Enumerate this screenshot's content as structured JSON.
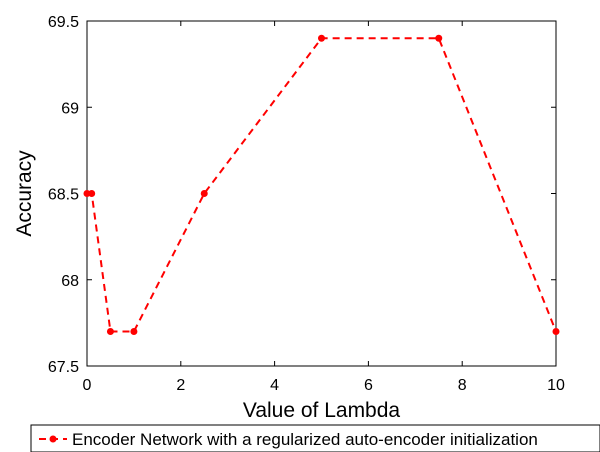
{
  "chart_data": {
    "type": "line",
    "title": "",
    "xlabel": "Value of Lambda",
    "ylabel": "Accuracy",
    "xlim": [
      0,
      10
    ],
    "ylim": [
      67.5,
      69.5
    ],
    "xticks": [
      0,
      2,
      4,
      6,
      8,
      10
    ],
    "xtick_labels": [
      "0",
      "2",
      "4",
      "6",
      "8",
      "10"
    ],
    "yticks": [
      67.5,
      68,
      68.5,
      69,
      69.5
    ],
    "ytick_labels": [
      "67.5",
      "68",
      "68.5",
      "69",
      "69.5"
    ],
    "grid": false,
    "legend_position": "bottom",
    "series": [
      {
        "name": "Encoder Network with a regularized auto-encoder initialization",
        "color": "#ff0000",
        "line_style": "dashed",
        "marker": "circle",
        "x": [
          0,
          0.1,
          0.5,
          1,
          2.5,
          5,
          7.5,
          10
        ],
        "y": [
          68.5,
          68.5,
          67.7,
          67.7,
          68.5,
          69.4,
          69.4,
          67.7
        ]
      }
    ]
  }
}
